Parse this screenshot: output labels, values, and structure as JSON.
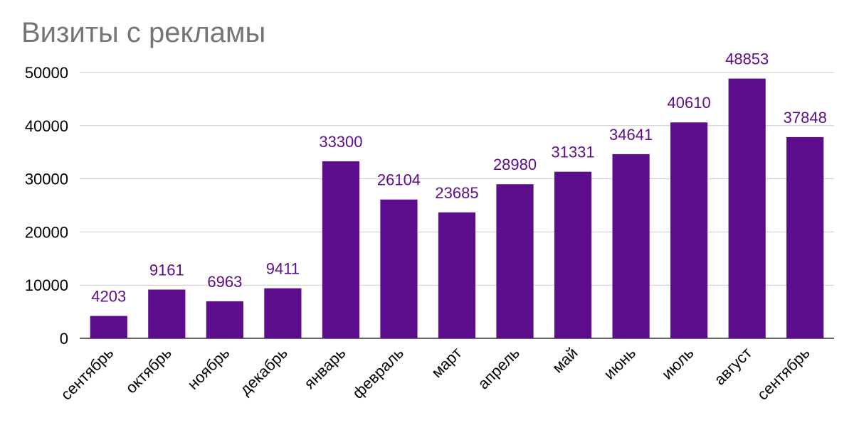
{
  "chart_data": {
    "type": "bar",
    "title": "Визиты с рекламы",
    "xlabel": "",
    "ylabel": "",
    "categories": [
      "сентябрь",
      "октябрь",
      "ноябрь",
      "декабрь",
      "январь",
      "февраль",
      "март",
      "апрель",
      "май",
      "июнь",
      "июль",
      "август",
      "сентябрь"
    ],
    "series": [
      {
        "values": [
          4203,
          9161,
          6963,
          9411,
          33300,
          26104,
          23685,
          28980,
          31331,
          34641,
          40610,
          48853,
          37848
        ]
      }
    ],
    "ylim": [
      0,
      50000
    ],
    "yticks": [
      0,
      10000,
      20000,
      30000,
      40000,
      50000
    ],
    "grid": true,
    "legend": "none",
    "data_labels": true,
    "bar_color": "#5c0d8c",
    "label_color": "#5c0d8c",
    "title_color": "#757575",
    "grid_color": "#cccccc",
    "axis_color": "#333333"
  }
}
